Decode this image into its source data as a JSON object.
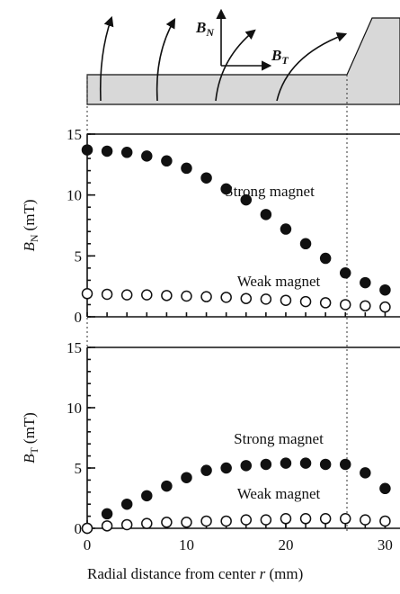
{
  "diagram": {
    "normal": {
      "symbol": "B",
      "subscript": "N"
    },
    "tangential": {
      "symbol": "B",
      "subscript": "T"
    }
  },
  "chart_data": [
    {
      "type": "scatter",
      "ylabel": {
        "symbol": "B",
        "subscript": "N",
        "unit": "(mT)"
      },
      "x": [
        0,
        2,
        4,
        6,
        8,
        10,
        12,
        14,
        16,
        18,
        20,
        22,
        24,
        26,
        28,
        30
      ],
      "xlim": [
        0,
        31.5
      ],
      "ylim": [
        0,
        15
      ],
      "yticks": [
        0,
        5,
        10,
        15
      ],
      "series": [
        {
          "name": "Strong magnet",
          "marker": "filled",
          "color": "#111",
          "values": [
            13.7,
            13.6,
            13.5,
            13.2,
            12.8,
            12.2,
            11.4,
            10.5,
            9.6,
            8.4,
            7.2,
            6.0,
            4.8,
            3.6,
            2.8,
            2.2
          ]
        },
        {
          "name": "Weak magnet",
          "marker": "open",
          "color": "#111",
          "values": [
            1.9,
            1.85,
            1.8,
            1.8,
            1.75,
            1.7,
            1.65,
            1.6,
            1.5,
            1.45,
            1.35,
            1.25,
            1.15,
            1.0,
            0.9,
            0.8
          ]
        }
      ]
    },
    {
      "type": "scatter",
      "ylabel": {
        "symbol": "B",
        "subscript": "T",
        "unit": "(mT)"
      },
      "xlabel": {
        "text": "Radial distance from center",
        "variable": "r",
        "unit": "(mm)"
      },
      "x": [
        0,
        2,
        4,
        6,
        8,
        10,
        12,
        14,
        16,
        18,
        20,
        22,
        24,
        26,
        28,
        30
      ],
      "xlim": [
        0,
        31.5
      ],
      "xticks": [
        0,
        10,
        20,
        30
      ],
      "ylim": [
        0,
        15
      ],
      "yticks": [
        0,
        5,
        10,
        15
      ],
      "series": [
        {
          "name": "Strong magnet",
          "marker": "filled",
          "color": "#111",
          "values": [
            0,
            1.2,
            2.0,
            2.7,
            3.5,
            4.2,
            4.8,
            5.0,
            5.2,
            5.3,
            5.4,
            5.4,
            5.3,
            5.3,
            4.6,
            3.3
          ]
        },
        {
          "name": "Weak magnet",
          "marker": "open",
          "color": "#111",
          "values": [
            0,
            0.2,
            0.3,
            0.4,
            0.5,
            0.5,
            0.6,
            0.6,
            0.7,
            0.7,
            0.8,
            0.8,
            0.8,
            0.8,
            0.7,
            0.6
          ]
        }
      ]
    }
  ]
}
